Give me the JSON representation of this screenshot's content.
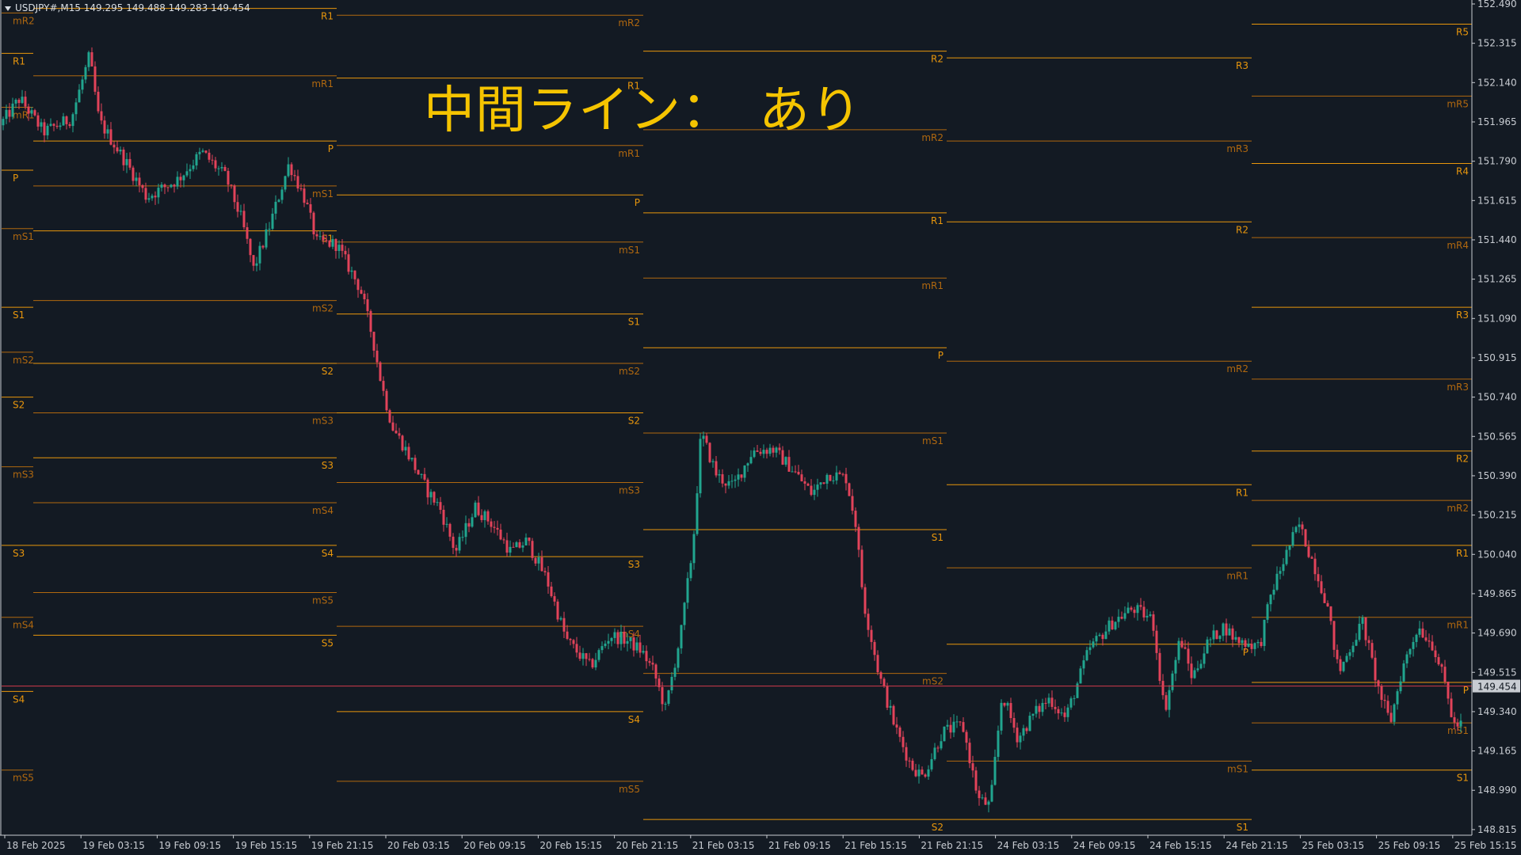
{
  "header": {
    "symbol_info": "USDJPY#,M15  149.295 149.488 149.283 149.454"
  },
  "overlay": {
    "text": "中間ライン：　あり"
  },
  "colors": {
    "background": "#131a23",
    "axis": "#c8ccd2",
    "bull": "#21a58f",
    "bear": "#e2435a",
    "pivot_main": "#e8960c",
    "pivot_mid": "#b0680f",
    "price_line": "#d23b4b",
    "price_tag_bg": "#c8ccd2"
  },
  "price_axis": {
    "labels": [
      "152.490",
      "152.315",
      "152.140",
      "151.965",
      "151.790",
      "151.615",
      "151.440",
      "151.265",
      "151.090",
      "150.915",
      "150.740",
      "150.565",
      "150.390",
      "150.215",
      "150.040",
      "149.865",
      "149.690",
      "149.515",
      "149.340",
      "149.165",
      "148.990",
      "148.815"
    ],
    "current_price": "149.454"
  },
  "time_axis": {
    "labels": [
      "18 Feb 2025",
      "19 Feb 03:15",
      "19 Feb 09:15",
      "19 Feb 15:15",
      "19 Feb 21:15",
      "20 Feb 03:15",
      "20 Feb 09:15",
      "20 Feb 15:15",
      "20 Feb 21:15",
      "21 Feb 03:15",
      "21 Feb 09:15",
      "21 Feb 15:15",
      "21 Feb 21:15",
      "24 Feb 03:15",
      "24 Feb 09:15",
      "24 Feb 15:15",
      "24 Feb 21:15",
      "25 Feb 03:15",
      "25 Feb 09:15",
      "25 Feb 15:15"
    ]
  },
  "pivot_blocks": [
    {
      "levels": [
        {
          "label": "mR2",
          "price": 152.45,
          "kind": "mid"
        },
        {
          "label": "R1",
          "price": 152.27,
          "kind": "main"
        },
        {
          "label": "mR1",
          "price": 152.03,
          "kind": "mid"
        },
        {
          "label": "P",
          "price": 151.75,
          "kind": "main"
        },
        {
          "label": "mS1",
          "price": 151.49,
          "kind": "mid"
        },
        {
          "label": "S1",
          "price": 151.14,
          "kind": "main"
        },
        {
          "label": "mS2",
          "price": 150.94,
          "kind": "mid"
        },
        {
          "label": "S2",
          "price": 150.74,
          "kind": "main"
        },
        {
          "label": "mS3",
          "price": 150.43,
          "kind": "mid"
        },
        {
          "label": "S3",
          "price": 150.08,
          "kind": "main"
        },
        {
          "label": "mS4",
          "price": 149.76,
          "kind": "mid"
        },
        {
          "label": "S4",
          "price": 149.43,
          "kind": "main"
        },
        {
          "label": "mS5",
          "price": 149.08,
          "kind": "mid"
        }
      ]
    },
    {
      "levels": [
        {
          "label": "R1",
          "price": 152.47,
          "kind": "main"
        },
        {
          "label": "mR1",
          "price": 152.17,
          "kind": "mid"
        },
        {
          "label": "P",
          "price": 151.88,
          "kind": "main"
        },
        {
          "label": "mS1",
          "price": 151.68,
          "kind": "mid"
        },
        {
          "label": "S1",
          "price": 151.48,
          "kind": "main"
        },
        {
          "label": "mS2",
          "price": 151.17,
          "kind": "mid"
        },
        {
          "label": "S2",
          "price": 150.89,
          "kind": "main"
        },
        {
          "label": "mS3",
          "price": 150.67,
          "kind": "mid"
        },
        {
          "label": "S3",
          "price": 150.47,
          "kind": "main"
        },
        {
          "label": "mS4",
          "price": 150.27,
          "kind": "mid"
        },
        {
          "label": "S4",
          "price": 150.08,
          "kind": "main"
        },
        {
          "label": "mS5",
          "price": 149.87,
          "kind": "mid"
        },
        {
          "label": "S5",
          "price": 149.68,
          "kind": "main"
        }
      ]
    },
    {
      "levels": [
        {
          "label": "mR2",
          "price": 152.44,
          "kind": "mid"
        },
        {
          "label": "R1",
          "price": 152.16,
          "kind": "main"
        },
        {
          "label": "mR1",
          "price": 151.86,
          "kind": "mid"
        },
        {
          "label": "P",
          "price": 151.64,
          "kind": "main"
        },
        {
          "label": "mS1",
          "price": 151.43,
          "kind": "mid"
        },
        {
          "label": "S1",
          "price": 151.11,
          "kind": "main"
        },
        {
          "label": "mS2",
          "price": 150.89,
          "kind": "mid"
        },
        {
          "label": "S2",
          "price": 150.67,
          "kind": "main"
        },
        {
          "label": "mS3",
          "price": 150.36,
          "kind": "mid"
        },
        {
          "label": "S3",
          "price": 150.03,
          "kind": "main"
        },
        {
          "label": "mS4",
          "price": 149.72,
          "kind": "mid"
        },
        {
          "label": "S4",
          "price": 149.34,
          "kind": "main"
        },
        {
          "label": "mS5",
          "price": 149.03,
          "kind": "mid"
        }
      ]
    },
    {
      "levels": [
        {
          "label": "R2",
          "price": 152.28,
          "kind": "main"
        },
        {
          "label": "mR2",
          "price": 151.93,
          "kind": "mid"
        },
        {
          "label": "R1",
          "price": 151.56,
          "kind": "main"
        },
        {
          "label": "mR1",
          "price": 151.27,
          "kind": "mid"
        },
        {
          "label": "P",
          "price": 150.96,
          "kind": "main"
        },
        {
          "label": "mS1",
          "price": 150.58,
          "kind": "mid"
        },
        {
          "label": "S1",
          "price": 150.15,
          "kind": "main"
        },
        {
          "label": "mS2",
          "price": 149.51,
          "kind": "mid"
        },
        {
          "label": "S2",
          "price": 148.86,
          "kind": "main"
        }
      ]
    },
    {
      "levels": [
        {
          "label": "R3",
          "price": 152.25,
          "kind": "main"
        },
        {
          "label": "mR3",
          "price": 151.88,
          "kind": "mid"
        },
        {
          "label": "R2",
          "price": 151.52,
          "kind": "main"
        },
        {
          "label": "mR2",
          "price": 150.9,
          "kind": "mid"
        },
        {
          "label": "R1",
          "price": 150.35,
          "kind": "main"
        },
        {
          "label": "mR1",
          "price": 149.98,
          "kind": "mid"
        },
        {
          "label": "P",
          "price": 149.64,
          "kind": "main"
        },
        {
          "label": "mS1",
          "price": 149.12,
          "kind": "mid"
        },
        {
          "label": "S1",
          "price": 148.86,
          "kind": "main"
        }
      ]
    },
    {
      "levels": [
        {
          "label": "R5",
          "price": 152.4,
          "kind": "main"
        },
        {
          "label": "mR5",
          "price": 152.08,
          "kind": "mid"
        },
        {
          "label": "R4",
          "price": 151.78,
          "kind": "main"
        },
        {
          "label": "mR4",
          "price": 151.45,
          "kind": "mid"
        },
        {
          "label": "R3",
          "price": 151.14,
          "kind": "main"
        },
        {
          "label": "mR3",
          "price": 150.82,
          "kind": "mid"
        },
        {
          "label": "R2",
          "price": 150.5,
          "kind": "main"
        },
        {
          "label": "mR2",
          "price": 150.28,
          "kind": "mid"
        },
        {
          "label": "R1",
          "price": 150.08,
          "kind": "main"
        },
        {
          "label": "mR1",
          "price": 149.76,
          "kind": "mid"
        },
        {
          "label": "P",
          "price": 149.47,
          "kind": "main"
        },
        {
          "label": "mS1",
          "price": 149.29,
          "kind": "mid"
        },
        {
          "label": "S1",
          "price": 149.08,
          "kind": "main"
        }
      ]
    }
  ],
  "chart_data": {
    "type": "candlestick",
    "symbol": "USDJPY#",
    "timeframe": "M15",
    "ylim": [
      148.79,
      152.49
    ],
    "current": 149.454,
    "path": [
      [
        0,
        151.95
      ],
      [
        25,
        152.07
      ],
      [
        55,
        151.92
      ],
      [
        90,
        151.98
      ],
      [
        113,
        152.26
      ],
      [
        125,
        151.97
      ],
      [
        160,
        151.78
      ],
      [
        185,
        151.63
      ],
      [
        225,
        151.71
      ],
      [
        255,
        151.83
      ],
      [
        285,
        151.72
      ],
      [
        305,
        151.53
      ],
      [
        320,
        151.31
      ],
      [
        340,
        151.5
      ],
      [
        365,
        151.78
      ],
      [
        385,
        151.62
      ],
      [
        400,
        151.43
      ],
      [
        425,
        151.42
      ],
      [
        455,
        151.22
      ],
      [
        470,
        151.01
      ],
      [
        482,
        150.79
      ],
      [
        495,
        150.61
      ],
      [
        510,
        150.52
      ],
      [
        540,
        150.32
      ],
      [
        555,
        150.25
      ],
      [
        575,
        150.05
      ],
      [
        600,
        150.25
      ],
      [
        620,
        150.18
      ],
      [
        645,
        150.05
      ],
      [
        665,
        150.1
      ],
      [
        690,
        149.93
      ],
      [
        715,
        149.66
      ],
      [
        745,
        149.54
      ],
      [
        770,
        149.68
      ],
      [
        790,
        149.66
      ],
      [
        810,
        149.61
      ],
      [
        825,
        149.52
      ],
      [
        840,
        149.35
      ],
      [
        860,
        149.7
      ],
      [
        875,
        150.09
      ],
      [
        885,
        150.58
      ],
      [
        905,
        150.39
      ],
      [
        925,
        150.34
      ],
      [
        950,
        150.5
      ],
      [
        975,
        150.51
      ],
      [
        1000,
        150.42
      ],
      [
        1025,
        150.31
      ],
      [
        1045,
        150.4
      ],
      [
        1068,
        150.38
      ],
      [
        1080,
        150.18
      ],
      [
        1090,
        149.83
      ],
      [
        1110,
        149.5
      ],
      [
        1130,
        149.27
      ],
      [
        1150,
        149.1
      ],
      [
        1165,
        149.05
      ],
      [
        1190,
        149.25
      ],
      [
        1215,
        149.28
      ],
      [
        1235,
        148.95
      ],
      [
        1250,
        148.92
      ],
      [
        1265,
        149.42
      ],
      [
        1285,
        149.22
      ],
      [
        1305,
        149.33
      ],
      [
        1325,
        149.4
      ],
      [
        1345,
        149.31
      ],
      [
        1375,
        149.62
      ],
      [
        1405,
        149.74
      ],
      [
        1430,
        149.8
      ],
      [
        1455,
        149.75
      ],
      [
        1470,
        149.34
      ],
      [
        1490,
        149.67
      ],
      [
        1505,
        149.49
      ],
      [
        1525,
        149.65
      ],
      [
        1545,
        149.72
      ],
      [
        1560,
        149.66
      ],
      [
        1590,
        149.63
      ],
      [
        1605,
        149.87
      ],
      [
        1630,
        150.1
      ],
      [
        1640,
        150.17
      ],
      [
        1660,
        149.98
      ],
      [
        1675,
        149.82
      ],
      [
        1690,
        149.51
      ],
      [
        1705,
        149.63
      ],
      [
        1720,
        149.74
      ],
      [
        1740,
        149.44
      ],
      [
        1755,
        149.29
      ],
      [
        1770,
        149.53
      ],
      [
        1790,
        149.72
      ],
      [
        1810,
        149.63
      ],
      [
        1825,
        149.45
      ],
      [
        1835,
        149.28
      ]
    ]
  }
}
